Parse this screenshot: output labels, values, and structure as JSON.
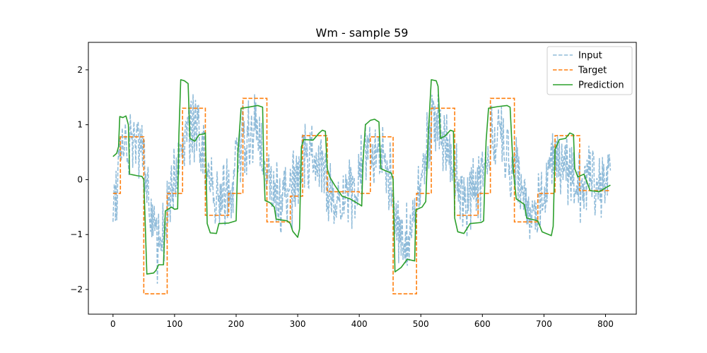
{
  "chart_data": {
    "type": "line",
    "title": "Wm - sample 59",
    "xlabel": "",
    "ylabel": "",
    "xlim": [
      -40,
      850
    ],
    "ylim": [
      -2.45,
      2.5
    ],
    "xticks": [
      0,
      100,
      200,
      300,
      400,
      500,
      600,
      700,
      800
    ],
    "yticks": [
      -2,
      -1,
      0,
      1,
      2
    ],
    "ytick_labels": [
      "−2",
      "−1",
      "0",
      "1",
      "2"
    ],
    "grid": false,
    "legend_position": "top-right",
    "colors": {
      "input": "#1f77b4",
      "target": "#ff7f0e",
      "prediction": "#2ca02c"
    },
    "series": [
      {
        "name": "Input",
        "style": "dashed",
        "alpha": 0.5,
        "noise_amplitude": 0.55,
        "center_points": [
          [
            0,
            -0.35
          ],
          [
            10,
            0.25
          ],
          [
            20,
            0.7
          ],
          [
            30,
            0.75
          ],
          [
            40,
            0.55
          ],
          [
            50,
            0.3
          ],
          [
            60,
            -0.5
          ],
          [
            70,
            -1.15
          ],
          [
            80,
            -1.25
          ],
          [
            90,
            -0.6
          ],
          [
            100,
            0.1
          ],
          [
            110,
            0.6
          ],
          [
            120,
            1.0
          ],
          [
            130,
            1.0
          ],
          [
            140,
            0.8
          ],
          [
            150,
            0.3
          ],
          [
            160,
            -0.3
          ],
          [
            170,
            -0.45
          ],
          [
            180,
            -0.4
          ],
          [
            190,
            -0.2
          ],
          [
            200,
            0.1
          ],
          [
            210,
            0.8
          ],
          [
            220,
            0.85
          ],
          [
            230,
            0.8
          ],
          [
            240,
            0.7
          ],
          [
            250,
            0.1
          ],
          [
            260,
            -0.05
          ],
          [
            270,
            -0.25
          ],
          [
            280,
            -0.4
          ],
          [
            290,
            -0.25
          ],
          [
            300,
            0.15
          ],
          [
            310,
            0.4
          ],
          [
            320,
            0.35
          ],
          [
            330,
            0.35
          ],
          [
            340,
            0.15
          ],
          [
            350,
            -0.2
          ],
          [
            360,
            -0.3
          ],
          [
            370,
            -0.3
          ],
          [
            380,
            -0.2
          ],
          [
            390,
            -0.1
          ],
          [
            400,
            0.0
          ],
          [
            410,
            0.4
          ],
          [
            420,
            0.55
          ],
          [
            430,
            0.5
          ],
          [
            440,
            0.4
          ],
          [
            450,
            0.05
          ],
          [
            460,
            -0.6
          ],
          [
            470,
            -1.2
          ],
          [
            480,
            -1.1
          ],
          [
            490,
            -0.5
          ],
          [
            500,
            0.1
          ],
          [
            510,
            0.6
          ],
          [
            520,
            1.0
          ],
          [
            530,
            0.95
          ],
          [
            540,
            0.75
          ],
          [
            550,
            0.4
          ],
          [
            560,
            -0.1
          ],
          [
            570,
            -0.35
          ],
          [
            580,
            -0.35
          ],
          [
            590,
            -0.25
          ],
          [
            600,
            0.1
          ],
          [
            610,
            0.75
          ],
          [
            620,
            0.75
          ],
          [
            630,
            0.7
          ],
          [
            640,
            0.55
          ],
          [
            650,
            0.2
          ],
          [
            660,
            -0.2
          ],
          [
            670,
            -0.3
          ],
          [
            680,
            -0.35
          ],
          [
            690,
            -0.45
          ],
          [
            700,
            -0.3
          ],
          [
            710,
            0.3
          ],
          [
            720,
            0.45
          ],
          [
            730,
            0.3
          ],
          [
            740,
            0.1
          ],
          [
            750,
            -0.1
          ],
          [
            760,
            -0.3
          ],
          [
            770,
            0.1
          ],
          [
            780,
            0.05
          ],
          [
            790,
            0.0
          ],
          [
            800,
            -0.1
          ],
          [
            808,
            -0.1
          ]
        ]
      },
      {
        "name": "Target",
        "style": "dashed",
        "steps": [
          [
            0,
            -0.25
          ],
          [
            12,
            0.78
          ],
          [
            50,
            -2.08
          ],
          [
            88,
            -0.25
          ],
          [
            113,
            1.3
          ],
          [
            150,
            -0.65
          ],
          [
            188,
            -0.25
          ],
          [
            211,
            1.48
          ],
          [
            250,
            -0.77
          ],
          [
            288,
            -0.3
          ],
          [
            308,
            0.8
          ],
          [
            348,
            -0.22
          ],
          [
            400,
            -0.25
          ],
          [
            418,
            0.78
          ],
          [
            455,
            -2.08
          ],
          [
            493,
            -0.25
          ],
          [
            517,
            1.3
          ],
          [
            555,
            -0.65
          ],
          [
            593,
            -0.25
          ],
          [
            613,
            1.48
          ],
          [
            652,
            -0.77
          ],
          [
            690,
            -0.25
          ],
          [
            718,
            0.8
          ],
          [
            758,
            -0.2
          ],
          [
            808,
            -0.2
          ]
        ]
      },
      {
        "name": "Prediction",
        "style": "solid",
        "points": [
          [
            0,
            0.42
          ],
          [
            6,
            0.48
          ],
          [
            9,
            0.6
          ],
          [
            11,
            1.15
          ],
          [
            16,
            1.13
          ],
          [
            21,
            1.16
          ],
          [
            25,
            1.0
          ],
          [
            27,
            0.1
          ],
          [
            40,
            0.07
          ],
          [
            47,
            0.06
          ],
          [
            50,
            0.0
          ],
          [
            55,
            -1.72
          ],
          [
            66,
            -1.7
          ],
          [
            70,
            -1.65
          ],
          [
            74,
            -1.55
          ],
          [
            82,
            -1.55
          ],
          [
            85,
            -0.57
          ],
          [
            95,
            -0.5
          ],
          [
            100,
            -0.54
          ],
          [
            105,
            -0.53
          ],
          [
            107,
            0.8
          ],
          [
            110,
            1.82
          ],
          [
            116,
            1.8
          ],
          [
            122,
            1.75
          ],
          [
            125,
            0.75
          ],
          [
            133,
            0.7
          ],
          [
            140,
            0.82
          ],
          [
            147,
            0.83
          ],
          [
            150,
            0.85
          ],
          [
            153,
            -0.8
          ],
          [
            158,
            -0.97
          ],
          [
            168,
            -0.98
          ],
          [
            172,
            -0.8
          ],
          [
            188,
            -0.79
          ],
          [
            200,
            -0.75
          ],
          [
            203,
            0.5
          ],
          [
            208,
            1.3
          ],
          [
            220,
            1.32
          ],
          [
            235,
            1.35
          ],
          [
            243,
            1.32
          ],
          [
            245,
            0.2
          ],
          [
            247,
            -0.38
          ],
          [
            255,
            -0.42
          ],
          [
            262,
            -0.5
          ],
          [
            265,
            -0.72
          ],
          [
            283,
            -0.75
          ],
          [
            288,
            -0.8
          ],
          [
            292,
            -0.94
          ],
          [
            300,
            -1.05
          ],
          [
            303,
            -0.9
          ],
          [
            306,
            0.6
          ],
          [
            310,
            0.73
          ],
          [
            325,
            0.72
          ],
          [
            335,
            0.85
          ],
          [
            340,
            0.9
          ],
          [
            345,
            0.88
          ],
          [
            348,
            0.2
          ],
          [
            352,
            0.05
          ],
          [
            360,
            -0.1
          ],
          [
            372,
            -0.3
          ],
          [
            385,
            -0.35
          ],
          [
            400,
            -0.45
          ],
          [
            404,
            -0.48
          ],
          [
            406,
            0.3
          ],
          [
            410,
            1.0
          ],
          [
            418,
            1.08
          ],
          [
            425,
            1.1
          ],
          [
            432,
            1.05
          ],
          [
            435,
            0.2
          ],
          [
            445,
            0.15
          ],
          [
            452,
            0.12
          ],
          [
            455,
            0.0
          ],
          [
            458,
            -1.68
          ],
          [
            468,
            -1.6
          ],
          [
            478,
            -1.45
          ],
          [
            490,
            -1.48
          ],
          [
            492,
            -0.55
          ],
          [
            502,
            -0.5
          ],
          [
            508,
            -0.4
          ],
          [
            512,
            0.8
          ],
          [
            517,
            1.82
          ],
          [
            525,
            1.8
          ],
          [
            528,
            1.7
          ],
          [
            532,
            0.75
          ],
          [
            540,
            0.8
          ],
          [
            548,
            0.9
          ],
          [
            553,
            0.88
          ],
          [
            555,
            -0.7
          ],
          [
            560,
            -0.95
          ],
          [
            570,
            -0.98
          ],
          [
            580,
            -0.8
          ],
          [
            598,
            -0.78
          ],
          [
            602,
            -0.75
          ],
          [
            606,
            0.7
          ],
          [
            610,
            1.3
          ],
          [
            625,
            1.33
          ],
          [
            640,
            1.35
          ],
          [
            645,
            1.32
          ],
          [
            650,
            0.2
          ],
          [
            655,
            -0.35
          ],
          [
            668,
            -0.45
          ],
          [
            672,
            -0.7
          ],
          [
            690,
            -0.75
          ],
          [
            697,
            -0.95
          ],
          [
            712,
            -1.02
          ],
          [
            715,
            -0.85
          ],
          [
            718,
            0.55
          ],
          [
            725,
            0.73
          ],
          [
            735,
            0.75
          ],
          [
            742,
            0.85
          ],
          [
            748,
            0.82
          ],
          [
            750,
            0.2
          ],
          [
            755,
            0.05
          ],
          [
            765,
            0.1
          ],
          [
            770,
            -0.05
          ],
          [
            775,
            -0.2
          ],
          [
            790,
            -0.22
          ],
          [
            800,
            -0.15
          ],
          [
            808,
            -0.1
          ]
        ]
      }
    ]
  }
}
